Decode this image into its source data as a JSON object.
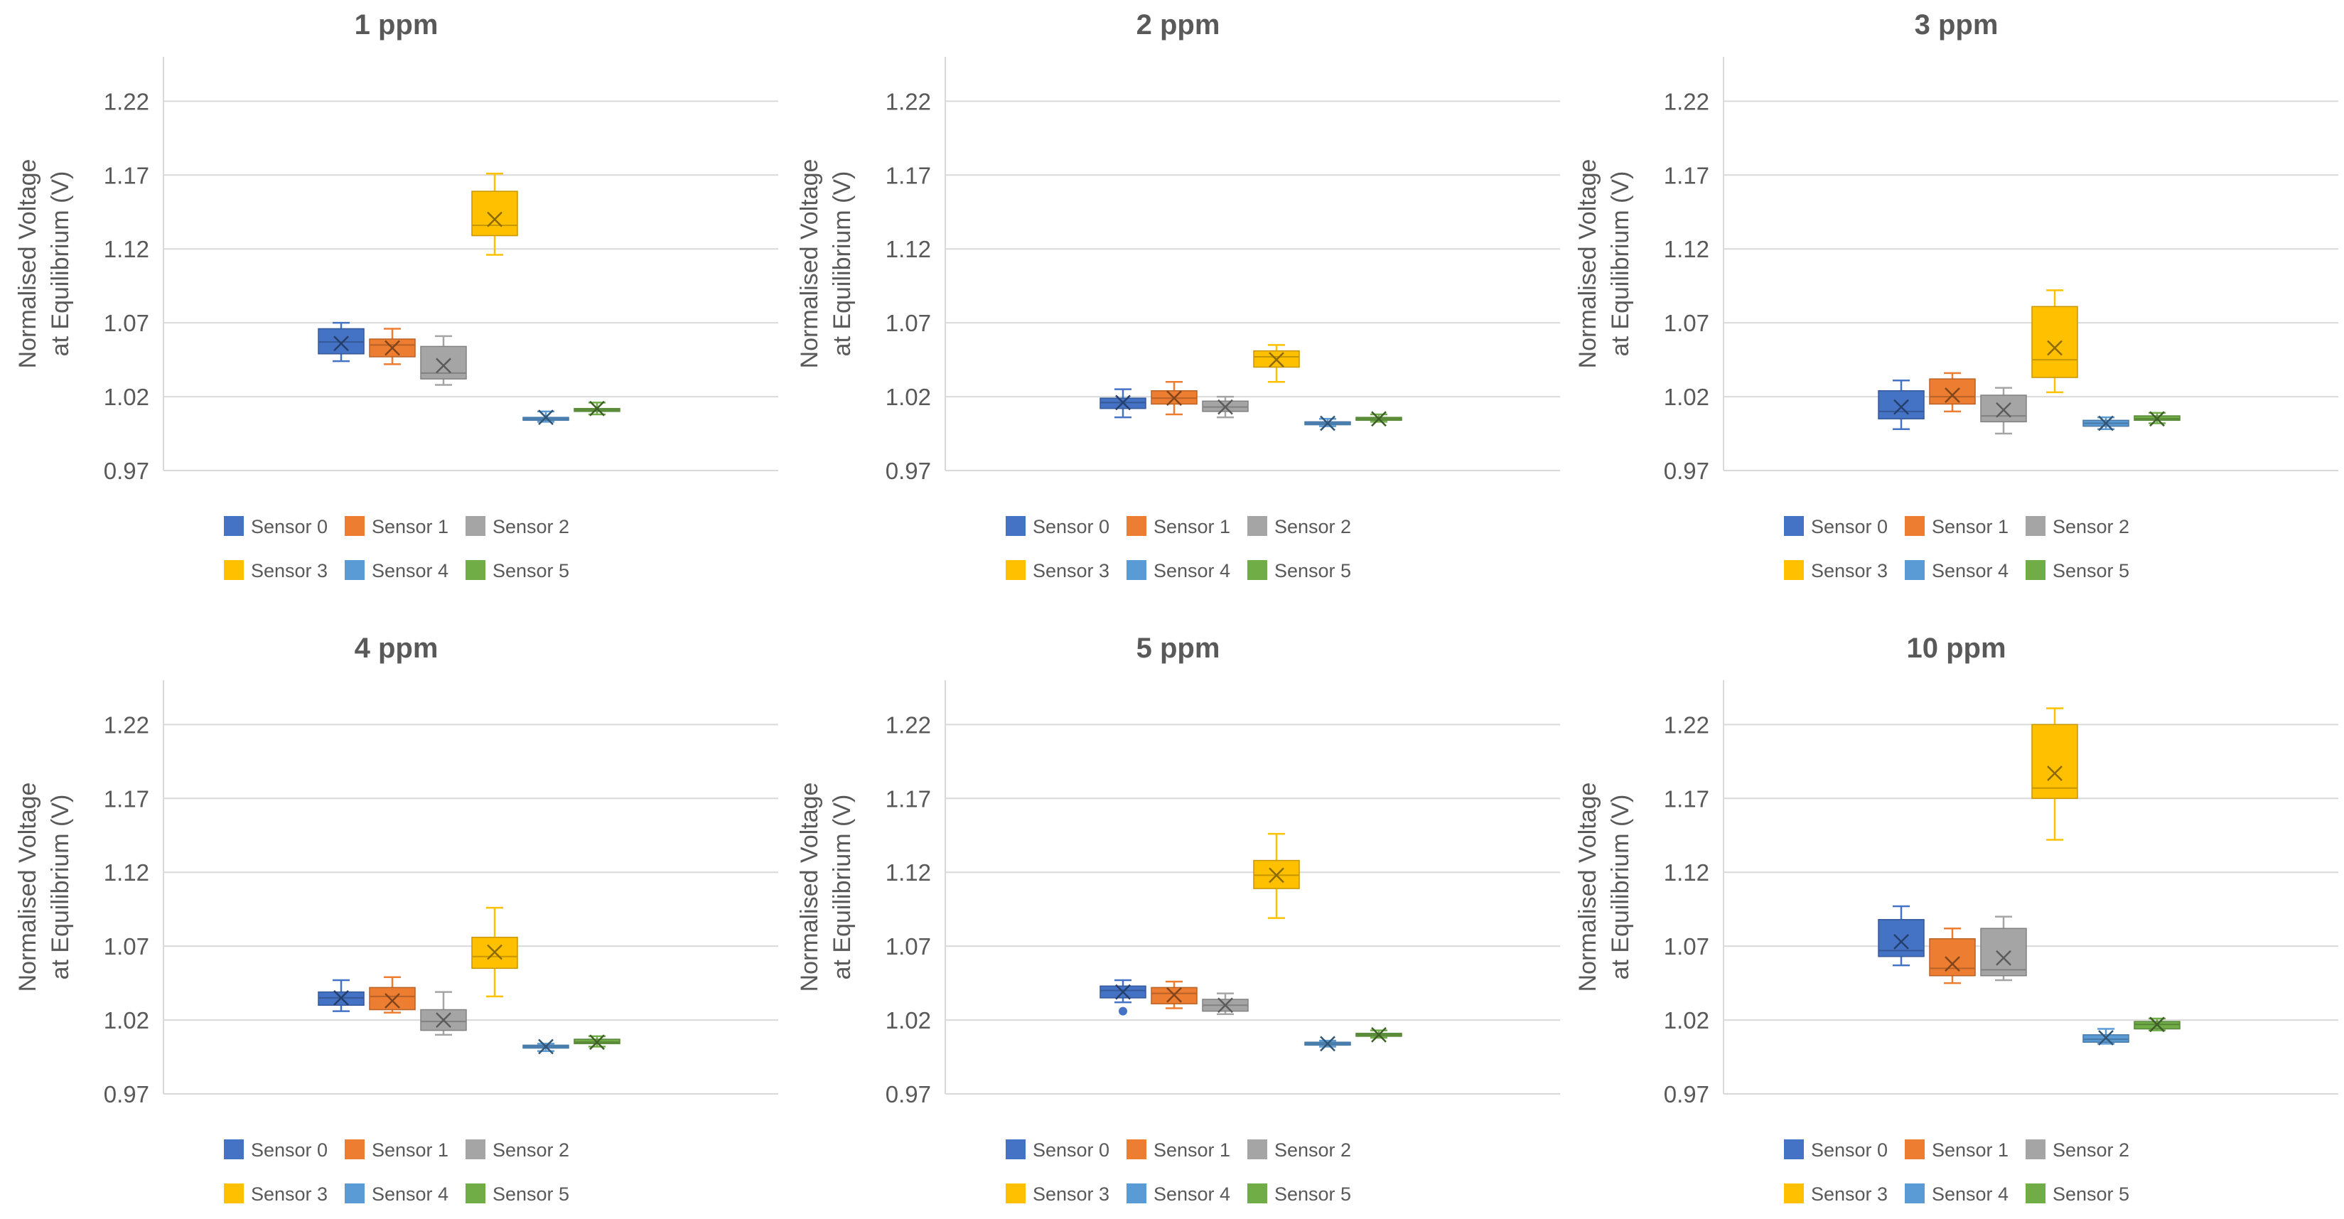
{
  "chart_data": [
    {
      "type": "box",
      "title": "1 ppm",
      "ylabel_line1": "Normalised Voltage",
      "ylabel_line2": "at Equilibrium (V)",
      "ylim": [
        0.97,
        1.25
      ],
      "yticks": [
        "1.22",
        "1.17",
        "1.12",
        "1.07",
        "1.02",
        "0.97"
      ],
      "series": [
        {
          "name": "Sensor 0",
          "color": "#4472C4",
          "min": 1.044,
          "q1": 1.049,
          "median": 1.057,
          "q3": 1.066,
          "max": 1.07,
          "mean": 1.056,
          "outliers": []
        },
        {
          "name": "Sensor 1",
          "color": "#ED7D31",
          "min": 1.042,
          "q1": 1.047,
          "median": 1.055,
          "q3": 1.059,
          "max": 1.066,
          "mean": 1.053,
          "outliers": []
        },
        {
          "name": "Sensor 2",
          "color": "#A5A5A5",
          "min": 1.028,
          "q1": 1.032,
          "median": 1.036,
          "q3": 1.054,
          "max": 1.061,
          "mean": 1.041,
          "outliers": []
        },
        {
          "name": "Sensor 3",
          "color": "#FFC000",
          "min": 1.116,
          "q1": 1.129,
          "median": 1.136,
          "q3": 1.159,
          "max": 1.171,
          "mean": 1.14,
          "outliers": []
        },
        {
          "name": "Sensor 4",
          "color": "#5B9BD5",
          "min": 1.003,
          "q1": 1.004,
          "median": 1.005,
          "q3": 1.006,
          "max": 1.01,
          "mean": 1.006,
          "outliers": []
        },
        {
          "name": "Sensor 5",
          "color": "#70AD47",
          "min": 1.008,
          "q1": 1.01,
          "median": 1.011,
          "q3": 1.012,
          "max": 1.016,
          "mean": 1.012,
          "outliers": []
        }
      ]
    },
    {
      "type": "box",
      "title": "2 ppm",
      "ylabel_line1": "Normalised Voltage",
      "ylabel_line2": "at Equilibrium (V)",
      "ylim": [
        0.97,
        1.25
      ],
      "yticks": [
        "1.22",
        "1.17",
        "1.12",
        "1.07",
        "1.02",
        "0.97"
      ],
      "series": [
        {
          "name": "Sensor 0",
          "color": "#4472C4",
          "min": 1.006,
          "q1": 1.012,
          "median": 1.016,
          "q3": 1.019,
          "max": 1.025,
          "mean": 1.016,
          "outliers": []
        },
        {
          "name": "Sensor 1",
          "color": "#ED7D31",
          "min": 1.008,
          "q1": 1.015,
          "median": 1.019,
          "q3": 1.024,
          "max": 1.03,
          "mean": 1.019,
          "outliers": []
        },
        {
          "name": "Sensor 2",
          "color": "#A5A5A5",
          "min": 1.006,
          "q1": 1.01,
          "median": 1.013,
          "q3": 1.017,
          "max": 1.02,
          "mean": 1.013,
          "outliers": []
        },
        {
          "name": "Sensor 3",
          "color": "#FFC000",
          "min": 1.03,
          "q1": 1.04,
          "median": 1.047,
          "q3": 1.051,
          "max": 1.055,
          "mean": 1.045,
          "outliers": []
        },
        {
          "name": "Sensor 4",
          "color": "#5B9BD5",
          "min": 1.0,
          "q1": 1.001,
          "median": 1.002,
          "q3": 1.003,
          "max": 1.005,
          "mean": 1.002,
          "outliers": []
        },
        {
          "name": "Sensor 5",
          "color": "#70AD47",
          "min": 1.003,
          "q1": 1.004,
          "median": 1.005,
          "q3": 1.006,
          "max": 1.008,
          "mean": 1.005,
          "outliers": []
        }
      ]
    },
    {
      "type": "box",
      "title": "3 ppm",
      "ylabel_line1": "Normalised Voltage",
      "ylabel_line2": "at Equilibrium (V)",
      "ylim": [
        0.97,
        1.25
      ],
      "yticks": [
        "1.22",
        "1.17",
        "1.12",
        "1.07",
        "1.02",
        "0.97"
      ],
      "series": [
        {
          "name": "Sensor 0",
          "color": "#4472C4",
          "min": 0.998,
          "q1": 1.005,
          "median": 1.01,
          "q3": 1.024,
          "max": 1.031,
          "mean": 1.013,
          "outliers": []
        },
        {
          "name": "Sensor 1",
          "color": "#ED7D31",
          "min": 1.01,
          "q1": 1.015,
          "median": 1.02,
          "q3": 1.032,
          "max": 1.036,
          "mean": 1.021,
          "outliers": []
        },
        {
          "name": "Sensor 2",
          "color": "#A5A5A5",
          "min": 0.995,
          "q1": 1.003,
          "median": 1.007,
          "q3": 1.021,
          "max": 1.026,
          "mean": 1.011,
          "outliers": []
        },
        {
          "name": "Sensor 3",
          "color": "#FFC000",
          "min": 1.023,
          "q1": 1.033,
          "median": 1.045,
          "q3": 1.081,
          "max": 1.092,
          "mean": 1.053,
          "outliers": []
        },
        {
          "name": "Sensor 4",
          "color": "#5B9BD5",
          "min": 0.998,
          "q1": 1.0,
          "median": 1.002,
          "q3": 1.004,
          "max": 1.006,
          "mean": 1.002,
          "outliers": []
        },
        {
          "name": "Sensor 5",
          "color": "#70AD47",
          "min": 1.002,
          "q1": 1.004,
          "median": 1.005,
          "q3": 1.007,
          "max": 1.009,
          "mean": 1.005,
          "outliers": []
        }
      ]
    },
    {
      "type": "box",
      "title": "4 ppm",
      "ylabel_line1": "Normalised Voltage",
      "ylabel_line2": "at Equilibrium (V)",
      "ylim": [
        0.97,
        1.25
      ],
      "yticks": [
        "1.22",
        "1.17",
        "1.12",
        "1.07",
        "1.02",
        "0.97"
      ],
      "series": [
        {
          "name": "Sensor 0",
          "color": "#4472C4",
          "min": 1.026,
          "q1": 1.03,
          "median": 1.035,
          "q3": 1.039,
          "max": 1.047,
          "mean": 1.035,
          "outliers": []
        },
        {
          "name": "Sensor 1",
          "color": "#ED7D31",
          "min": 1.025,
          "q1": 1.027,
          "median": 1.036,
          "q3": 1.042,
          "max": 1.049,
          "mean": 1.033,
          "outliers": []
        },
        {
          "name": "Sensor 2",
          "color": "#A5A5A5",
          "min": 1.01,
          "q1": 1.013,
          "median": 1.019,
          "q3": 1.027,
          "max": 1.039,
          "mean": 1.02,
          "outliers": []
        },
        {
          "name": "Sensor 3",
          "color": "#FFC000",
          "min": 1.036,
          "q1": 1.055,
          "median": 1.063,
          "q3": 1.076,
          "max": 1.096,
          "mean": 1.066,
          "outliers": []
        },
        {
          "name": "Sensor 4",
          "color": "#5B9BD5",
          "min": 0.999,
          "q1": 1.001,
          "median": 1.002,
          "q3": 1.003,
          "max": 1.004,
          "mean": 1.002,
          "outliers": []
        },
        {
          "name": "Sensor 5",
          "color": "#70AD47",
          "min": 1.002,
          "q1": 1.004,
          "median": 1.005,
          "q3": 1.007,
          "max": 1.009,
          "mean": 1.005,
          "outliers": []
        }
      ]
    },
    {
      "type": "box",
      "title": "5 ppm",
      "ylabel_line1": "Normalised Voltage",
      "ylabel_line2": "at Equilibrium (V)",
      "ylim": [
        0.97,
        1.25
      ],
      "yticks": [
        "1.22",
        "1.17",
        "1.12",
        "1.07",
        "1.02",
        "0.97"
      ],
      "series": [
        {
          "name": "Sensor 0",
          "color": "#4472C4",
          "min": 1.032,
          "q1": 1.035,
          "median": 1.04,
          "q3": 1.043,
          "max": 1.047,
          "mean": 1.039,
          "outliers": [
            1.026
          ]
        },
        {
          "name": "Sensor 1",
          "color": "#ED7D31",
          "min": 1.028,
          "q1": 1.031,
          "median": 1.038,
          "q3": 1.042,
          "max": 1.046,
          "mean": 1.037,
          "outliers": []
        },
        {
          "name": "Sensor 2",
          "color": "#A5A5A5",
          "min": 1.024,
          "q1": 1.026,
          "median": 1.03,
          "q3": 1.034,
          "max": 1.038,
          "mean": 1.03,
          "outliers": []
        },
        {
          "name": "Sensor 3",
          "color": "#FFC000",
          "min": 1.089,
          "q1": 1.109,
          "median": 1.118,
          "q3": 1.128,
          "max": 1.146,
          "mean": 1.118,
          "outliers": []
        },
        {
          "name": "Sensor 4",
          "color": "#5B9BD5",
          "min": 1.002,
          "q1": 1.003,
          "median": 1.004,
          "q3": 1.005,
          "max": 1.006,
          "mean": 1.004,
          "outliers": []
        },
        {
          "name": "Sensor 5",
          "color": "#70AD47",
          "min": 1.008,
          "q1": 1.009,
          "median": 1.01,
          "q3": 1.011,
          "max": 1.013,
          "mean": 1.01,
          "outliers": []
        }
      ]
    },
    {
      "type": "box",
      "title": "10 ppm",
      "ylabel_line1": "Normalised Voltage",
      "ylabel_line2": "at Equilibrium (V)",
      "ylim": [
        0.97,
        1.25
      ],
      "yticks": [
        "1.22",
        "1.17",
        "1.12",
        "1.07",
        "1.02",
        "0.97"
      ],
      "series": [
        {
          "name": "Sensor 0",
          "color": "#4472C4",
          "min": 1.057,
          "q1": 1.063,
          "median": 1.067,
          "q3": 1.088,
          "max": 1.097,
          "mean": 1.073,
          "outliers": []
        },
        {
          "name": "Sensor 1",
          "color": "#ED7D31",
          "min": 1.045,
          "q1": 1.05,
          "median": 1.055,
          "q3": 1.075,
          "max": 1.082,
          "mean": 1.058,
          "outliers": []
        },
        {
          "name": "Sensor 2",
          "color": "#A5A5A5",
          "min": 1.047,
          "q1": 1.05,
          "median": 1.054,
          "q3": 1.082,
          "max": 1.09,
          "mean": 1.062,
          "outliers": []
        },
        {
          "name": "Sensor 3",
          "color": "#FFC000",
          "min": 1.142,
          "q1": 1.17,
          "median": 1.177,
          "q3": 1.22,
          "max": 1.231,
          "mean": 1.187,
          "outliers": []
        },
        {
          "name": "Sensor 4",
          "color": "#5B9BD5",
          "min": 1.004,
          "q1": 1.005,
          "median": 1.007,
          "q3": 1.01,
          "max": 1.014,
          "mean": 1.008,
          "outliers": []
        },
        {
          "name": "Sensor 5",
          "color": "#70AD47",
          "min": 1.013,
          "q1": 1.014,
          "median": 1.017,
          "q3": 1.019,
          "max": 1.021,
          "mean": 1.017,
          "outliers": []
        }
      ]
    }
  ]
}
